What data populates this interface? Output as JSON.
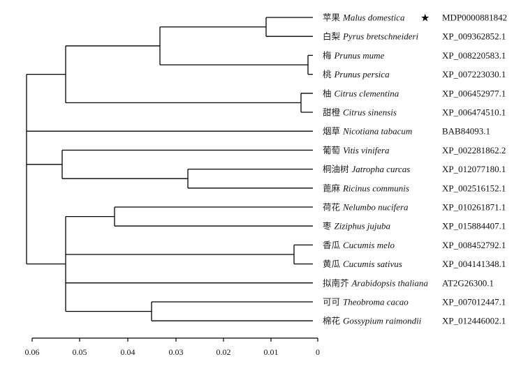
{
  "tree": {
    "taxa": [
      {
        "zh": "苹果",
        "sci": "Malus domestica",
        "accession": "MDP0000881842",
        "marker": "★"
      },
      {
        "zh": "白梨",
        "sci": "Pyrus bretschneideri",
        "accession": "XP_009362852.1"
      },
      {
        "zh": "梅",
        "sci": "Prunus mume",
        "accession": "XP_008220583.1"
      },
      {
        "zh": "桃",
        "sci": "Prunus persica",
        "accession": "XP_007223030.1"
      },
      {
        "zh": "柚",
        "sci": "Citrus clementina",
        "accession": "XP_006452977.1"
      },
      {
        "zh": "甜橙",
        "sci": "Citrus sinensis",
        "accession": "XP_006474510.1"
      },
      {
        "zh": "烟草",
        "sci": "Nicotiana tabacum",
        "accession": "BAB84093.1"
      },
      {
        "zh": "葡萄",
        "sci": "Vitis vinifera",
        "accession": "XP_002281862.2"
      },
      {
        "zh": "桐油树",
        "sci": "Jatropha curcas",
        "accession": "XP_012077180.1"
      },
      {
        "zh": "蓖麻",
        "sci": "Ricinus communis",
        "accession": "XP_002516152.1"
      },
      {
        "zh": "荷花",
        "sci": "Nelumbo nucifera",
        "accession": "XP_010261871.1"
      },
      {
        "zh": "枣",
        "sci": "Ziziphus jujuba",
        "accession": "XP_015884407.1"
      },
      {
        "zh": "香瓜",
        "sci": "Cucumis melo",
        "accession": "XP_008452792.1"
      },
      {
        "zh": "黄瓜",
        "sci": "Cucumis sativus",
        "accession": "XP_004141348.1"
      },
      {
        "zh": "拟南芥",
        "sci": "Arabidopsis thaliana",
        "accession": "AT2G26300.1"
      },
      {
        "zh": "可可",
        "sci": "Theobroma cacao",
        "accession": "XP_007012447.1"
      },
      {
        "zh": "棉花",
        "sci": "Gossypium raimondii",
        "accession": "XP_012446002.1"
      }
    ],
    "axis": {
      "ticks": [
        "0.06",
        "0.05",
        "0.04",
        "0.03",
        "0.02",
        "0.01",
        "0"
      ]
    }
  }
}
